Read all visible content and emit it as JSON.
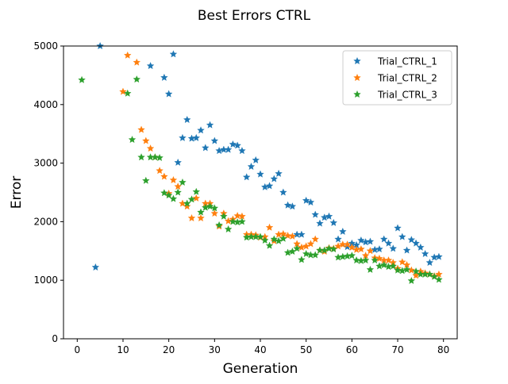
{
  "chart_data": {
    "type": "scatter",
    "title": "Best Errors CTRL",
    "xlabel": "Generation",
    "ylabel": "Error",
    "xlim": [
      -3,
      83
    ],
    "ylim": [
      0,
      5000
    ],
    "xticks": [
      0,
      10,
      20,
      30,
      40,
      50,
      60,
      70,
      80
    ],
    "yticks": [
      0,
      1000,
      2000,
      3000,
      4000,
      5000
    ],
    "grid": false,
    "legend": "top-right",
    "marker": "star",
    "series": [
      {
        "name": "Trial_CTRL_1",
        "color": "#1f77b4",
        "x": [
          4,
          5,
          16,
          19,
          20,
          21,
          22,
          23,
          24,
          25,
          26,
          27,
          28,
          29,
          30,
          31,
          32,
          33,
          34,
          35,
          36,
          37,
          38,
          39,
          40,
          41,
          42,
          43,
          44,
          45,
          46,
          47,
          48,
          49,
          50,
          51,
          52,
          53,
          54,
          55,
          56,
          57,
          58,
          59,
          60,
          61,
          62,
          63,
          64,
          65,
          66,
          67,
          68,
          69,
          70,
          71,
          72,
          73,
          74,
          75,
          76,
          77,
          78,
          79
        ],
        "y": [
          1220,
          5000,
          4660,
          4460,
          4180,
          4860,
          3010,
          3430,
          3740,
          3420,
          3430,
          3560,
          3260,
          3650,
          3380,
          3210,
          3230,
          3230,
          3320,
          3300,
          3210,
          2760,
          2940,
          3050,
          2810,
          2590,
          2610,
          2730,
          2820,
          2500,
          2280,
          2260,
          1780,
          1780,
          2360,
          2330,
          2120,
          1970,
          2070,
          2090,
          1980,
          1700,
          1830,
          1570,
          1630,
          1600,
          1680,
          1650,
          1660,
          1520,
          1530,
          1700,
          1630,
          1540,
          1890,
          1740,
          1510,
          1690,
          1630,
          1560,
          1450,
          1300,
          1390,
          1400
        ]
      },
      {
        "name": "Trial_CTRL_2",
        "color": "#ff7f0e",
        "x": [
          10,
          11,
          13,
          14,
          15,
          16,
          17,
          18,
          19,
          20,
          21,
          22,
          23,
          24,
          25,
          26,
          27,
          28,
          29,
          30,
          31,
          32,
          33,
          34,
          35,
          36,
          37,
          38,
          39,
          40,
          41,
          42,
          43,
          44,
          45,
          46,
          47,
          48,
          49,
          50,
          51,
          52,
          53,
          54,
          55,
          56,
          57,
          58,
          59,
          60,
          61,
          62,
          63,
          64,
          65,
          66,
          67,
          68,
          69,
          70,
          71,
          72,
          73,
          74,
          75,
          76,
          77,
          78,
          79
        ],
        "y": [
          4220,
          4840,
          4720,
          3570,
          3380,
          3250,
          3100,
          2870,
          2770,
          2480,
          2710,
          2600,
          2310,
          2260,
          2060,
          2400,
          2060,
          2310,
          2310,
          2140,
          1920,
          2140,
          2010,
          2040,
          2100,
          2090,
          1780,
          1780,
          1770,
          1730,
          1740,
          1900,
          1670,
          1780,
          1790,
          1760,
          1750,
          1620,
          1560,
          1580,
          1620,
          1700,
          1510,
          1490,
          1550,
          1540,
          1580,
          1610,
          1610,
          1560,
          1520,
          1530,
          1420,
          1500,
          1380,
          1370,
          1340,
          1340,
          1300,
          1200,
          1310,
          1260,
          1170,
          1080,
          1150,
          1120,
          1100,
          1070,
          1100
        ]
      },
      {
        "name": "Trial_CTRL_3",
        "color": "#2ca02c",
        "x": [
          1,
          11,
          12,
          13,
          14,
          15,
          16,
          17,
          18,
          19,
          20,
          21,
          22,
          23,
          24,
          25,
          26,
          27,
          28,
          29,
          30,
          31,
          32,
          33,
          34,
          35,
          36,
          37,
          38,
          39,
          40,
          41,
          42,
          43,
          44,
          45,
          46,
          47,
          48,
          49,
          50,
          51,
          52,
          53,
          54,
          55,
          56,
          57,
          58,
          59,
          60,
          61,
          62,
          63,
          64,
          65,
          66,
          67,
          68,
          69,
          70,
          71,
          72,
          73,
          74,
          75,
          76,
          77,
          78,
          79
        ],
        "y": [
          4420,
          4190,
          3400,
          4430,
          3100,
          2700,
          3100,
          3100,
          3090,
          2490,
          2450,
          2390,
          2500,
          2670,
          2310,
          2380,
          2510,
          2160,
          2240,
          2260,
          2230,
          1940,
          2090,
          1870,
          2000,
          1990,
          2000,
          1730,
          1740,
          1740,
          1740,
          1680,
          1590,
          1700,
          1670,
          1710,
          1470,
          1490,
          1540,
          1350,
          1450,
          1430,
          1430,
          1510,
          1510,
          1540,
          1530,
          1390,
          1400,
          1410,
          1420,
          1340,
          1330,
          1340,
          1180,
          1340,
          1240,
          1260,
          1230,
          1240,
          1170,
          1160,
          1180,
          990,
          1150,
          1100,
          1100,
          1100,
          1060,
          1010
        ]
      }
    ]
  }
}
